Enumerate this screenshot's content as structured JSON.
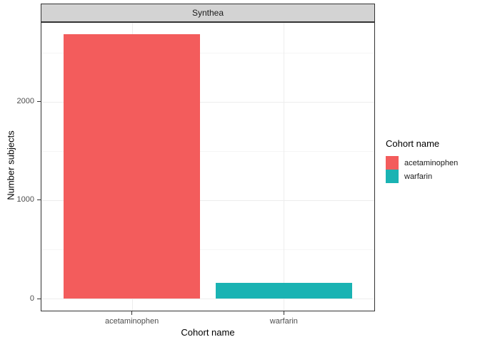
{
  "chart_data": {
    "type": "bar",
    "facet_label": "Synthea",
    "categories": [
      "acetaminophen",
      "warfarin"
    ],
    "values": [
      2690,
      160
    ],
    "bar_colors": [
      "#F35C5C",
      "#1AB3B3"
    ],
    "xlabel": "Cohort name",
    "ylabel": "Number subjects",
    "y_major_ticks": [
      0,
      1000,
      2000
    ],
    "y_minor_ticks": [
      500,
      1500,
      2500
    ],
    "ylim": [
      -130,
      2810
    ],
    "grid": true,
    "legend": {
      "title": "Cohort name",
      "position": "right",
      "entries": [
        {
          "label": "acetaminophen",
          "color": "#F35C5C"
        },
        {
          "label": "warfarin",
          "color": "#1AB3B3"
        }
      ]
    }
  },
  "theme": {
    "strip_background": "#d3d3d3",
    "panel_border_color": "#333333",
    "grid_major_color": "#ededed",
    "grid_minor_color": "#f5f5f5",
    "tick_label_color": "#4d4d4d",
    "background": "#ffffff"
  }
}
